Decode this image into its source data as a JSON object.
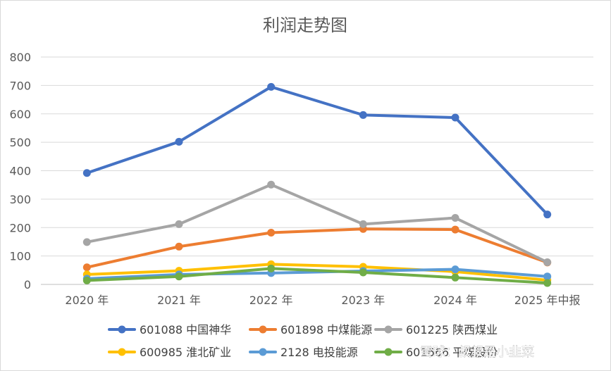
{
  "chart_data": {
    "type": "line",
    "title": "利润走势图",
    "xlabel": "",
    "ylabel": "",
    "categories": [
      "2020 年",
      "2021 年",
      "2022 年",
      "2023 年",
      "2024 年",
      "2025 年中报"
    ],
    "ylim": [
      0,
      800
    ],
    "yticks": [
      0,
      100,
      200,
      300,
      400,
      500,
      600,
      700,
      800
    ],
    "grid": true,
    "legend_position": "bottom",
    "series": [
      {
        "name": "601088 中国神华",
        "color": "#4472C4",
        "values": [
          392,
          502,
          695,
          596,
          587,
          246
        ]
      },
      {
        "name": "601898 中煤能源",
        "color": "#ED7D31",
        "values": [
          60,
          133,
          182,
          195,
          193,
          77
        ]
      },
      {
        "name": "601225 陕西煤业",
        "color": "#A5A5A5",
        "values": [
          149,
          212,
          351,
          212,
          234,
          78
        ]
      },
      {
        "name": "600985 淮北矿业",
        "color": "#FFC000",
        "values": [
          35,
          48,
          71,
          62,
          45,
          15
        ]
      },
      {
        "name": "2128 电投能源",
        "color": "#5B9BD5",
        "values": [
          20,
          35,
          40,
          47,
          53,
          28
        ]
      },
      {
        "name": "601666 平煤股份",
        "color": "#70AD47",
        "values": [
          14,
          28,
          56,
          42,
          24,
          5
        ]
      }
    ]
  },
  "watermark": "雪球：叔叔是小韭菜"
}
